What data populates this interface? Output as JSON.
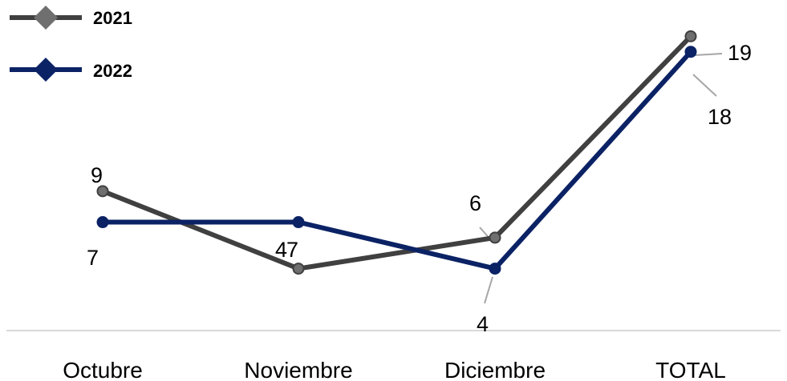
{
  "chart_data": {
    "type": "line",
    "categories": [
      "Octubre",
      "Noviembre",
      "Diciembre",
      "TOTAL"
    ],
    "series": [
      {
        "name": "2021",
        "values": [
          9,
          4,
          6,
          19
        ],
        "color": "#404040",
        "marker_color": "#6f6f6f",
        "labels": [
          "9",
          "4",
          "6",
          "19"
        ]
      },
      {
        "name": "2022",
        "values": [
          7,
          7,
          4,
          18
        ],
        "color": "#0b2265",
        "marker_color": "#0b2265",
        "labels": [
          "7",
          "7",
          "4",
          "18"
        ]
      }
    ],
    "marker": "diamond",
    "legend_position": "top-left",
    "grid": false,
    "ylim": [
      0,
      20
    ]
  }
}
